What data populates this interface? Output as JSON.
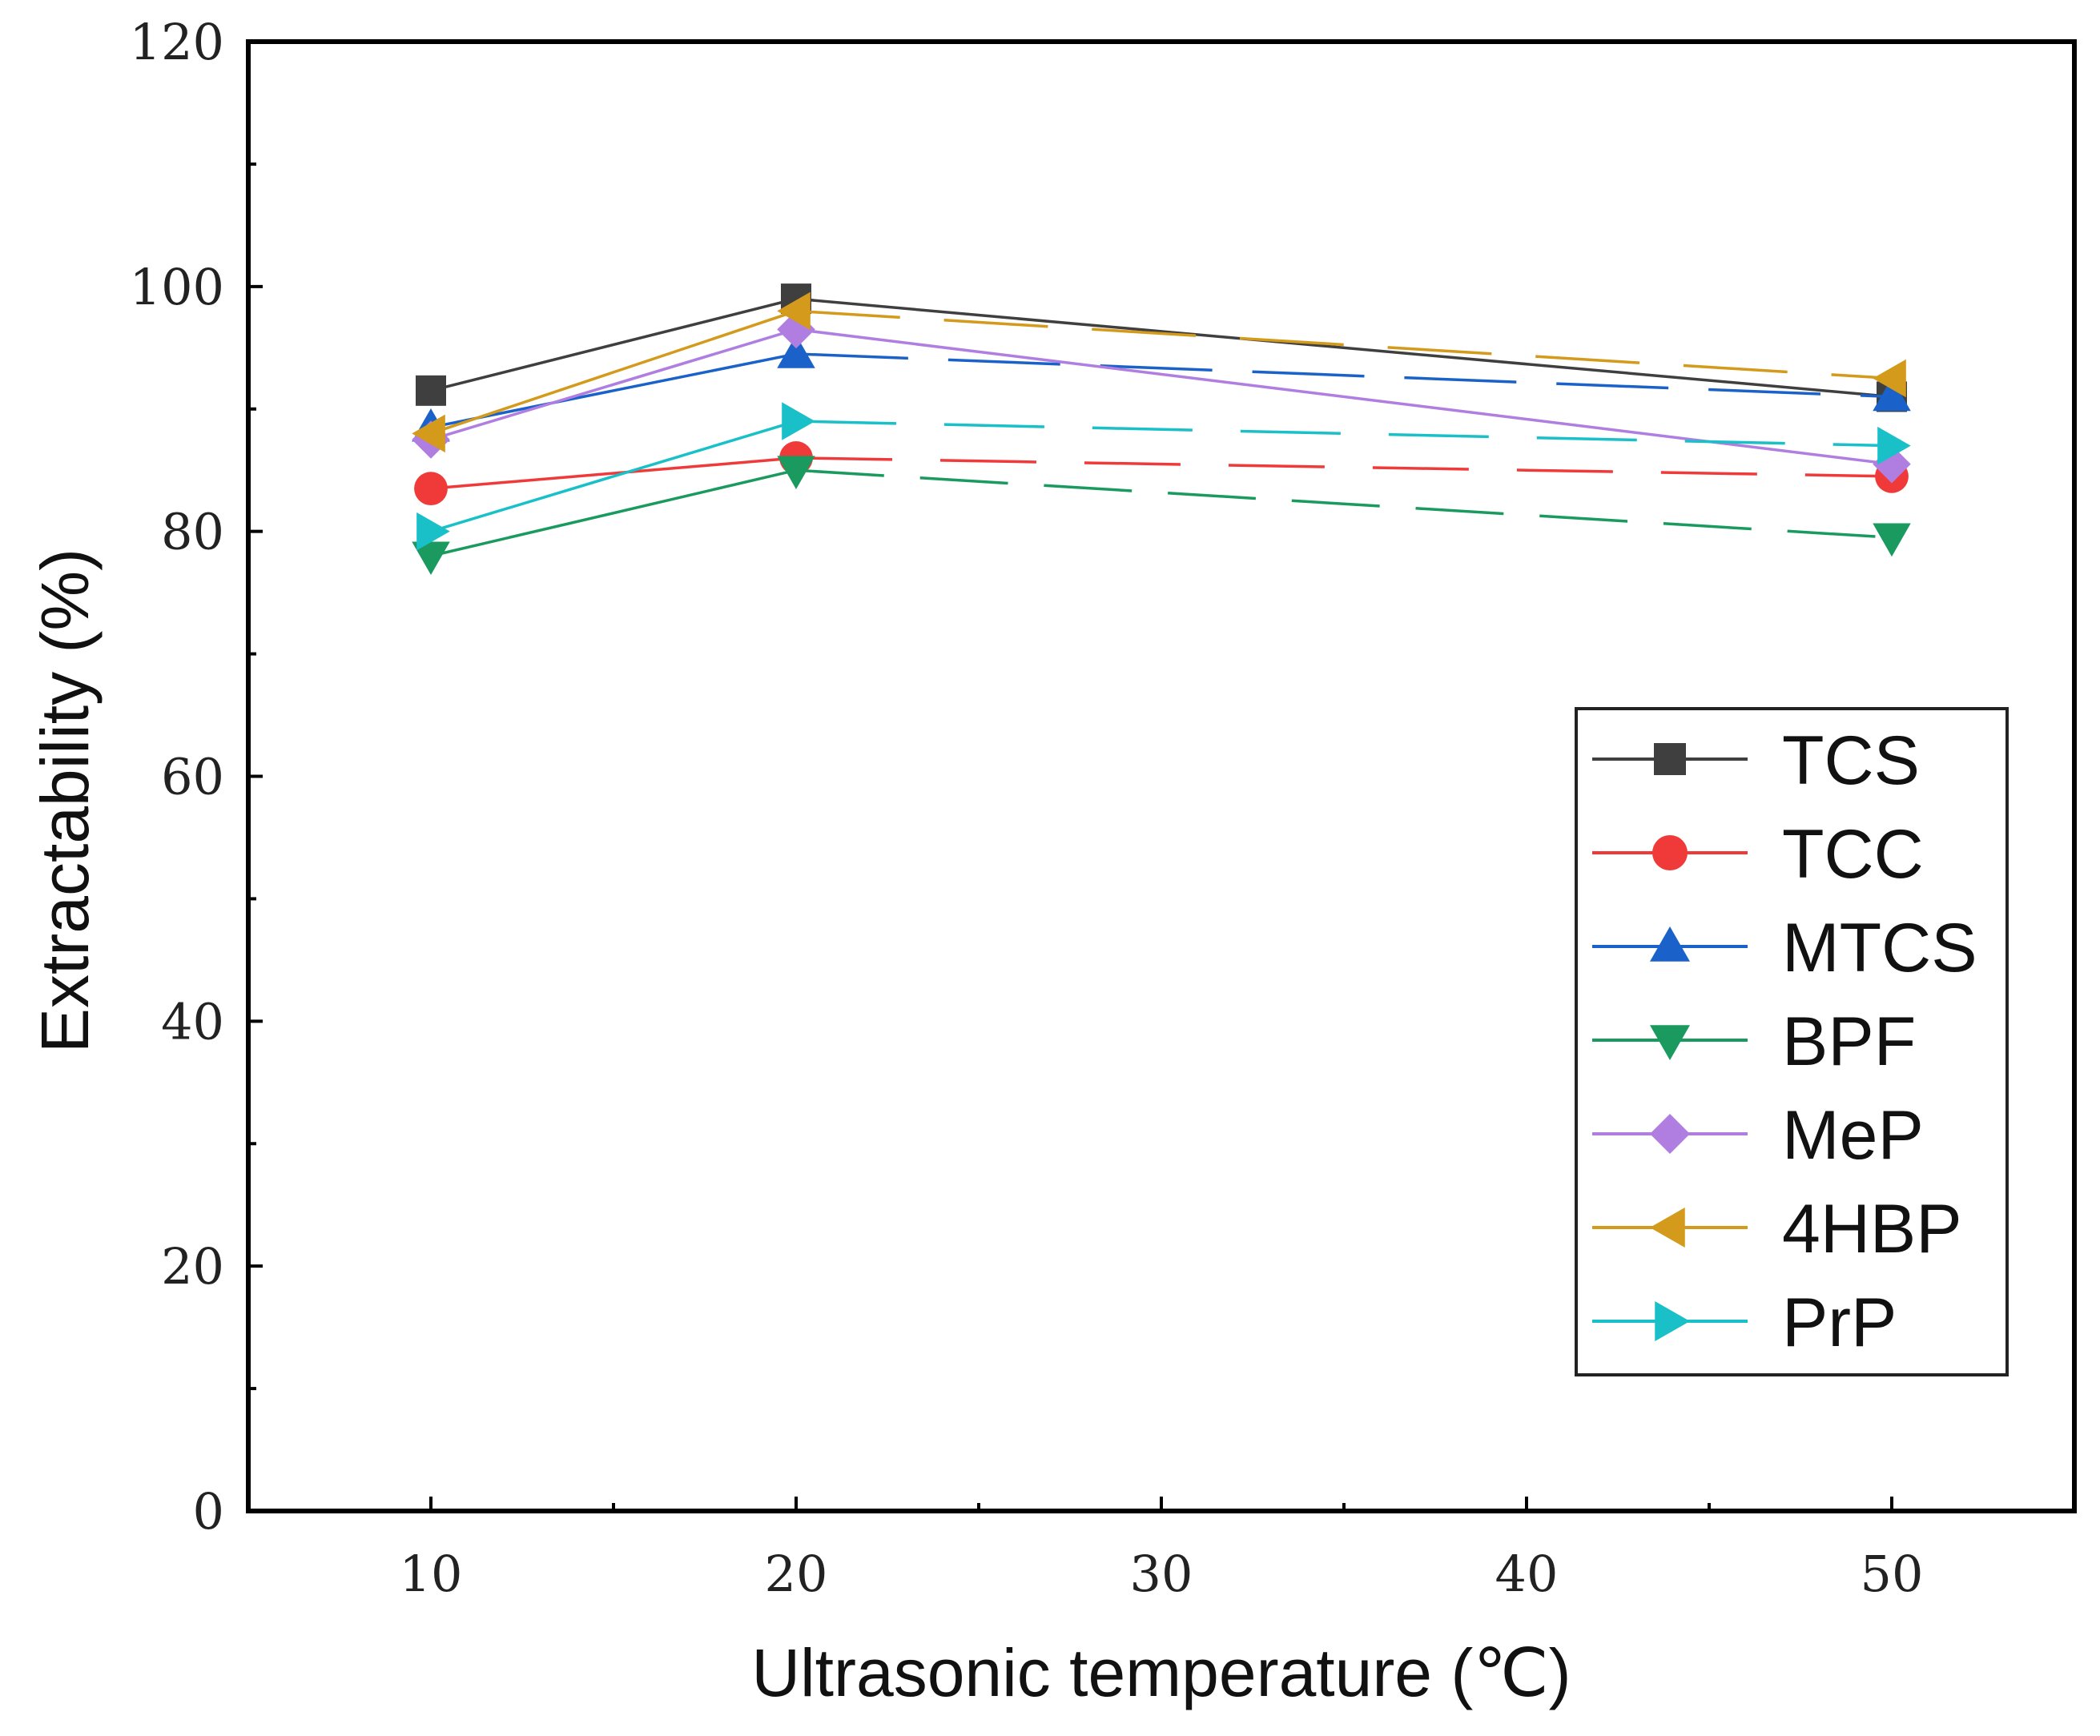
{
  "chart_data": {
    "type": "line",
    "xlabel": "Ultrasonic temperature (℃)",
    "ylabel": "Extractability (%)",
    "xlim": [
      5,
      55
    ],
    "ylim": [
      0,
      120
    ],
    "x_ticks": [
      10,
      20,
      30,
      40,
      50
    ],
    "x_tick_labels": [
      "10",
      "20",
      "30",
      "40",
      "50"
    ],
    "y_ticks": [
      0,
      20,
      40,
      60,
      80,
      100,
      120
    ],
    "y_tick_labels": [
      "0",
      "20",
      "40",
      "60",
      "80",
      "100",
      "120"
    ],
    "x": [
      10,
      20,
      50
    ],
    "legend_position": "right",
    "series": [
      {
        "name": "TCS",
        "marker": "square",
        "color": "#3f3f3f",
        "values": [
          91.5,
          99.0,
          91.0
        ]
      },
      {
        "name": "TCC",
        "marker": "circle",
        "color": "#f03a3a",
        "values": [
          83.5,
          86.0,
          84.5
        ]
      },
      {
        "name": "MTCS",
        "marker": "triangle-up",
        "color": "#1a62c9",
        "values": [
          88.5,
          94.5,
          91.0
        ]
      },
      {
        "name": "BPF",
        "marker": "triangle-down",
        "color": "#1a9a5e",
        "values": [
          78.0,
          85.0,
          79.5
        ]
      },
      {
        "name": "MeP",
        "marker": "diamond",
        "color": "#b07ee0",
        "values": [
          87.5,
          96.5,
          85.5
        ]
      },
      {
        "name": "4HBP",
        "marker": "triangle-left",
        "color": "#d39a1c",
        "values": [
          88.0,
          98.0,
          92.5
        ]
      },
      {
        "name": "PrP",
        "marker": "triangle-right",
        "color": "#19c0c8",
        "values": [
          80.0,
          89.0,
          87.0
        ]
      }
    ]
  }
}
